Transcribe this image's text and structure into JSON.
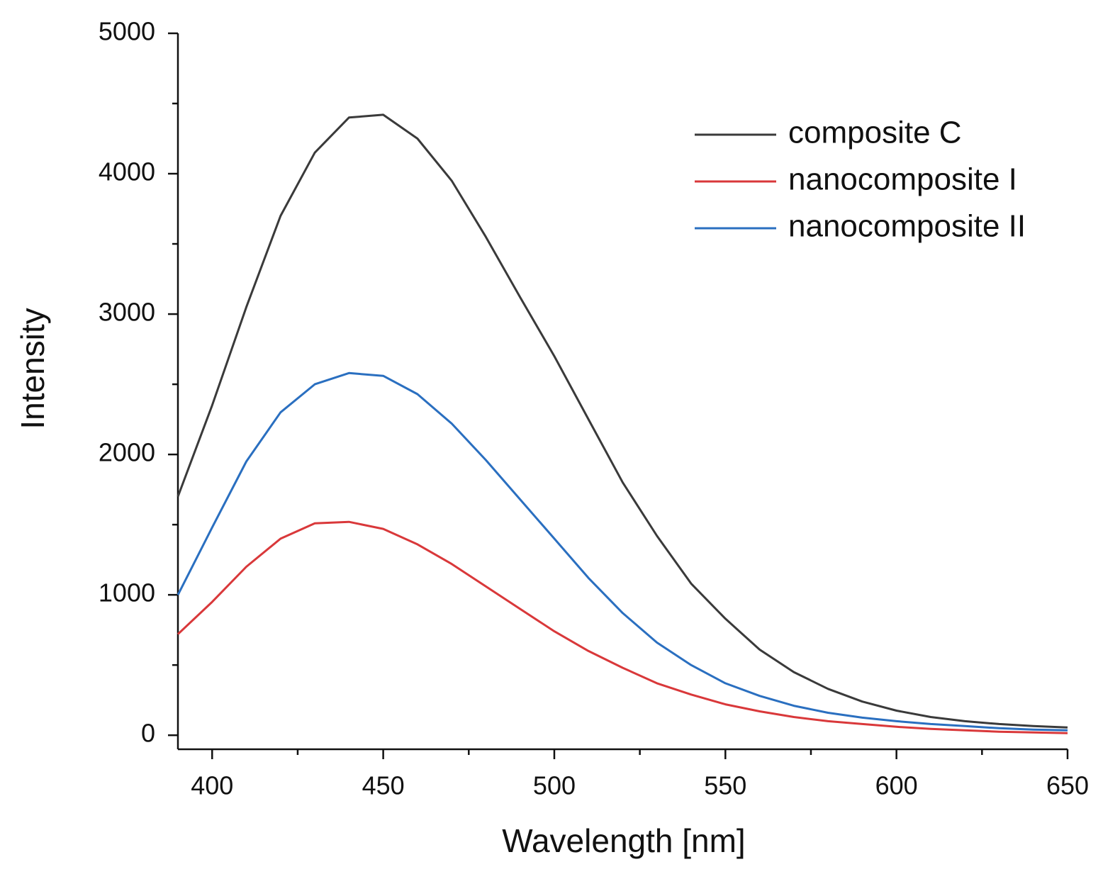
{
  "chart_data": {
    "type": "line",
    "x_label": "Wavelength [nm]",
    "y_label": "Intensity",
    "x": [
      390,
      400,
      410,
      420,
      430,
      440,
      450,
      460,
      470,
      480,
      490,
      500,
      510,
      520,
      530,
      540,
      550,
      560,
      570,
      580,
      590,
      600,
      610,
      620,
      630,
      640,
      650
    ],
    "series": [
      {
        "name": "composite C",
        "color": "#3a3a3a",
        "values": [
          1700,
          2350,
          3050,
          3700,
          4150,
          4400,
          4420,
          4250,
          3950,
          3550,
          3120,
          2700,
          2250,
          1800,
          1420,
          1080,
          830,
          610,
          450,
          330,
          240,
          175,
          130,
          100,
          80,
          65,
          55
        ]
      },
      {
        "name": "nanocomposite I",
        "color": "#d9383a",
        "values": [
          720,
          950,
          1200,
          1400,
          1510,
          1520,
          1470,
          1360,
          1220,
          1060,
          900,
          740,
          600,
          480,
          370,
          290,
          220,
          170,
          130,
          100,
          80,
          60,
          45,
          35,
          25,
          20,
          15
        ]
      },
      {
        "name": "nanocomposite II",
        "color": "#2a6fc0",
        "values": [
          1000,
          1480,
          1950,
          2300,
          2500,
          2580,
          2560,
          2430,
          2220,
          1960,
          1680,
          1400,
          1120,
          870,
          660,
          500,
          370,
          280,
          210,
          160,
          125,
          100,
          80,
          65,
          50,
          40,
          35
        ]
      }
    ],
    "xlim": [
      390,
      650
    ],
    "ylim": [
      -100,
      5000
    ],
    "xticks": [
      400,
      450,
      500,
      550,
      600,
      650
    ],
    "yticks": [
      0,
      1000,
      2000,
      3000,
      4000,
      5000
    ],
    "xminor": [
      425,
      475,
      525,
      575,
      625
    ],
    "yminor": [
      500,
      1500,
      2500,
      3500,
      4500
    ],
    "legend": "upper right",
    "grid": false
  }
}
